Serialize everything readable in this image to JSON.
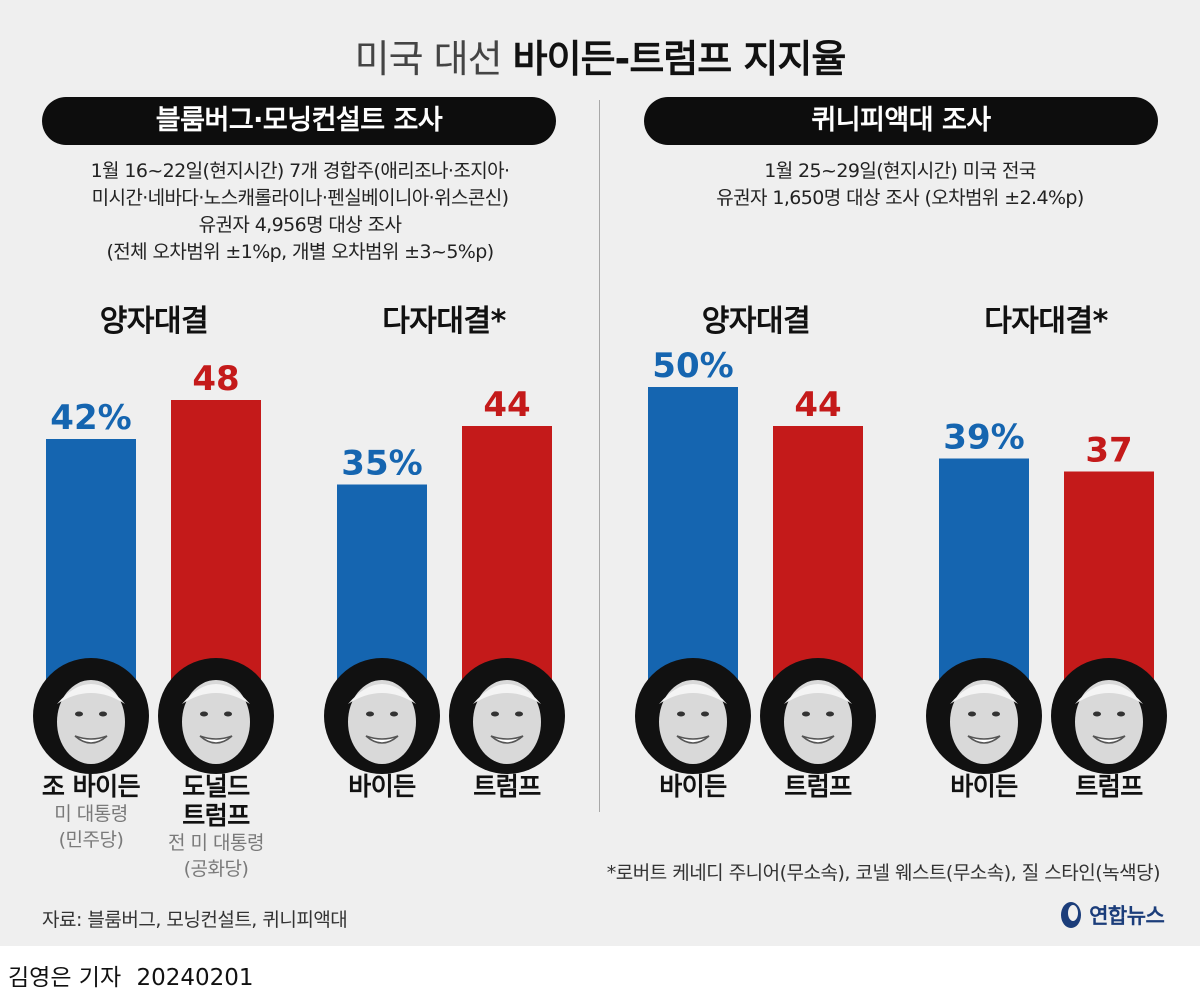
{
  "title": {
    "light": "미국 대선",
    "bold": "바이든-트럼프 지지율"
  },
  "colors": {
    "biden": "#1565b0",
    "trump": "#c41a1a",
    "pill": "#0d0d0d",
    "face": "#d9d9d9"
  },
  "left_panel": {
    "pill": "블룸버그·모닝컨설트 조사",
    "desc": [
      "1월 16~22일(현지시간) 7개 경합주(애리조나·조지아·",
      "미시간·네바다·노스캐롤라이나·펜실베이니아·위스콘신)",
      "유권자 4,956명 대상 조사",
      "(전체 오차범위 ±1%p, 개별 오차범위 ±3~5%p)"
    ]
  },
  "right_panel": {
    "pill": "퀴니피액대 조사",
    "desc": [
      "1월 25~29일(현지시간) 미국 전국",
      "유권자 1,650명 대상 조사 (오차범위 ±2.4%p)"
    ]
  },
  "chart_data": [
    {
      "type": "bar",
      "title": "양자대결",
      "survey": "블룸버그·모닝컨설트 조사",
      "categories": [
        "조 바이든",
        "도널드 트럼프"
      ],
      "values": [
        42,
        48
      ],
      "labels": [
        "42%",
        "48"
      ]
    },
    {
      "type": "bar",
      "title": "다자대결*",
      "survey": "블룸버그·모닝컨설트 조사",
      "categories": [
        "바이든",
        "트럼프"
      ],
      "values": [
        35,
        44
      ],
      "labels": [
        "35%",
        "44"
      ]
    },
    {
      "type": "bar",
      "title": "양자대결",
      "survey": "퀴니피액대 조사",
      "categories": [
        "바이든",
        "트럼프"
      ],
      "values": [
        50,
        44
      ],
      "labels": [
        "50%",
        "44"
      ]
    },
    {
      "type": "bar",
      "title": "다자대결*",
      "survey": "퀴니피액대 조사",
      "categories": [
        "바이든",
        "트럼프"
      ],
      "values": [
        39,
        37
      ],
      "labels": [
        "39%",
        "37"
      ]
    }
  ],
  "candidates": {
    "first": {
      "name": "조 바이든",
      "role": "미 대통령",
      "party": "(민주당)"
    },
    "second": {
      "name_line1": "도널드",
      "name_line2": "트럼프",
      "role": "전 미 대통령",
      "party": "(공화당)"
    },
    "short_biden": "바이든",
    "short_trump": "트럼프"
  },
  "footnote": "*로버트 케네디 주니어(무소속), 코넬 웨스트(무소속), 질 스타인(녹색당)",
  "source": "자료: 블룸버그, 모닝컨설트, 퀴니피액대",
  "logo": "연합뉴스",
  "byline": {
    "author": "김영은 기자",
    "date": "20240201"
  }
}
